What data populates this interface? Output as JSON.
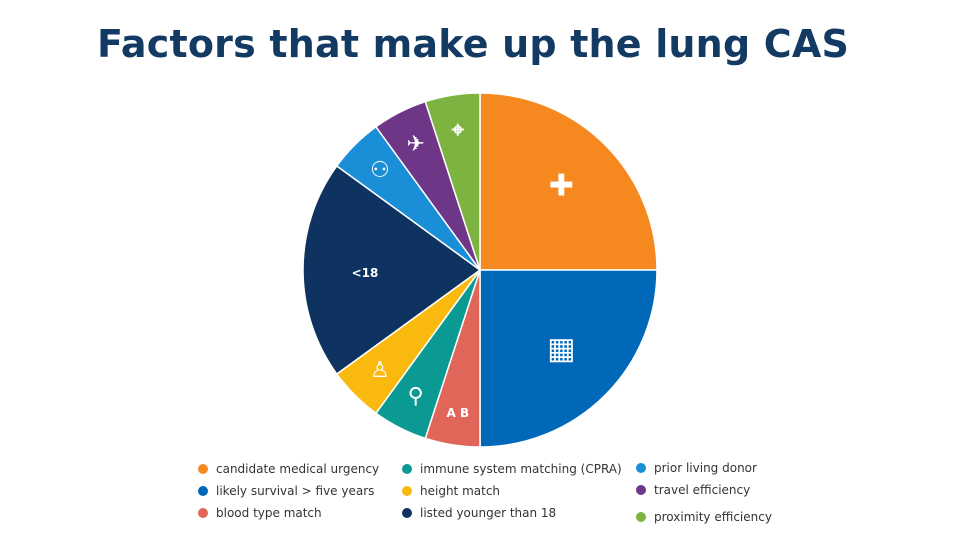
{
  "title": "Factors that make up the lung CAS",
  "chart_data": {
    "type": "pie",
    "title": "Factors that make up the lung CAS",
    "legend_position": "bottom",
    "slices": [
      {
        "label": "candidate medical urgency",
        "value": 25,
        "color": "#F5891F",
        "icon": "medical-cross-icon"
      },
      {
        "label": "likely survival > five years",
        "value": 25,
        "color": "#0068B8",
        "icon": "calendar-icon"
      },
      {
        "label": "blood type match",
        "value": 5,
        "color": "#E0665A",
        "icon": "blood-drop-ab-icon",
        "icon_text": "A B"
      },
      {
        "label": "immune system matching (CPRA)",
        "value": 5,
        "color": "#0A9A93",
        "icon": "dropper-icon"
      },
      {
        "label": "height match",
        "value": 5,
        "color": "#F9B90F",
        "icon": "height-person-icon"
      },
      {
        "label": "listed younger than 18",
        "value": 20,
        "color": "#0F3360",
        "icon": "clipboard-icon",
        "icon_text": "<18"
      },
      {
        "label": "prior living donor",
        "value": 5,
        "color": "#1A8ED6",
        "icon": "donor-people-icon"
      },
      {
        "label": "travel efficiency",
        "value": 5,
        "color": "#6E3687",
        "icon": "plane-icon"
      },
      {
        "label": "proximity efficiency",
        "value": 5,
        "color": "#7DB340",
        "icon": "location-pin-icon"
      }
    ]
  }
}
